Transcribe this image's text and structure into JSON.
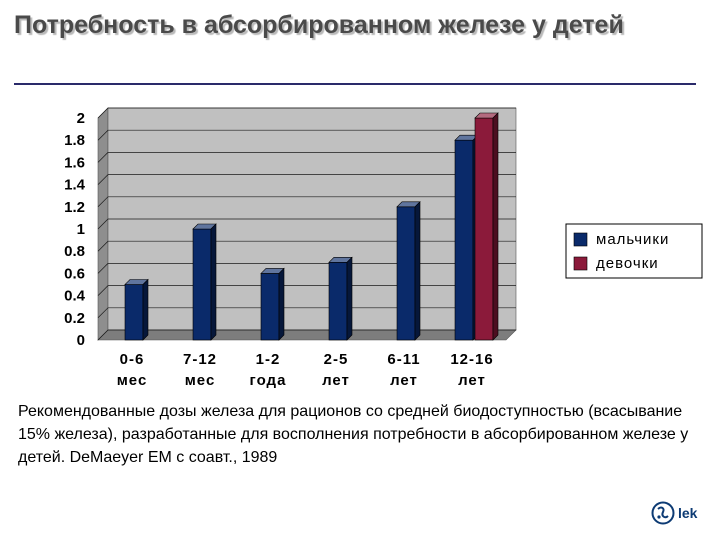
{
  "slide": {
    "title": "Потребность в абсорбированном железе у детей",
    "caption": "Рекомендованные дозы железа для рационов со средней биодоступностью (всасывание 15% железа), разработанные для восполнения потребности в абсорбированном железе у детей. DeMaeyer EM с соавт., 1989",
    "logo": {
      "icon": "lek-logo-icon",
      "text": "lek"
    }
  },
  "chart_data": {
    "type": "bar",
    "style": "3d-column",
    "categories": [
      [
        "0-6",
        "мес"
      ],
      [
        "7-12",
        "мес"
      ],
      [
        "1-2",
        "года"
      ],
      [
        "2-5",
        "лет"
      ],
      [
        "6-11",
        "лет"
      ],
      [
        "12-16",
        "лет"
      ]
    ],
    "series": [
      {
        "name": "мальчики",
        "color": "#0a2a6a",
        "values": [
          0.5,
          1.0,
          0.6,
          0.7,
          1.2,
          1.8
        ]
      },
      {
        "name": "девочки",
        "color": "#8b1a3a",
        "values": [
          null,
          null,
          null,
          null,
          null,
          2.0
        ]
      }
    ],
    "yticks": [
      "0",
      "0.2",
      "0.4",
      "0.6",
      "0.8",
      "1",
      "1.2",
      "1.4",
      "1.6",
      "1.8",
      "2"
    ],
    "ylim": [
      0,
      2
    ],
    "grid": true,
    "plot_background": "#c0c0c0",
    "legend_position": "right"
  }
}
